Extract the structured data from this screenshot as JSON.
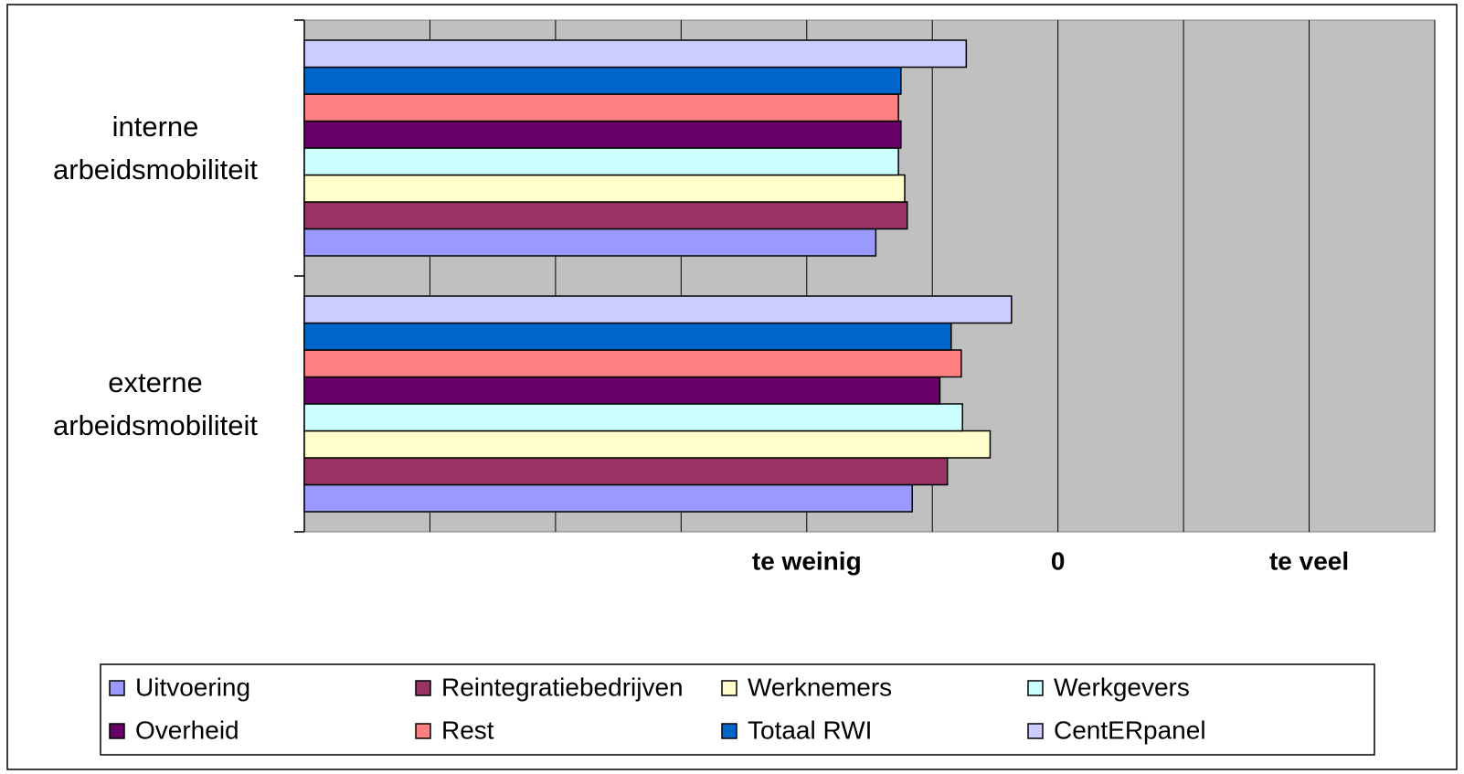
{
  "chart_data": {
    "type": "barh",
    "categories": [
      "interne arbeidsmobiliteit",
      "externe arbeidsmobiliteit"
    ],
    "series": [
      {
        "name": "Uitvoering",
        "color": "#9999ff",
        "values": [
          -1.45,
          -1.16
        ]
      },
      {
        "name": "Reintegratiebedrijven",
        "color": "#993366",
        "values": [
          -1.2,
          -0.88
        ]
      },
      {
        "name": "Werknemers",
        "color": "#ffffcc",
        "values": [
          -1.22,
          -0.54
        ]
      },
      {
        "name": "Werkgevers",
        "color": "#ccffff",
        "values": [
          -1.27,
          -0.76
        ]
      },
      {
        "name": "Overheid",
        "color": "#660066",
        "values": [
          -1.25,
          -0.94
        ]
      },
      {
        "name": "Rest",
        "color": "#ff8080",
        "values": [
          -1.27,
          -0.77
        ]
      },
      {
        "name": "Totaal RWI",
        "color": "#0066cc",
        "values": [
          -1.25,
          -0.85
        ]
      },
      {
        "name": "CentERpanel",
        "color": "#ccccff",
        "values": [
          -0.73,
          -0.37
        ]
      }
    ],
    "xlim": [
      -6,
      3
    ],
    "xticks": [
      {
        "value": -6,
        "label": null
      },
      {
        "value": -5,
        "label": null
      },
      {
        "value": -4,
        "label": null
      },
      {
        "value": -3,
        "label": null
      },
      {
        "value": -2,
        "label": "te weinig"
      },
      {
        "value": -1,
        "label": null
      },
      0,
      {
        "value": 1,
        "label": null
      },
      {
        "value": 2,
        "label": "te veel"
      },
      {
        "value": 3,
        "label": null
      }
    ],
    "grid": true,
    "legend": "bottom"
  }
}
